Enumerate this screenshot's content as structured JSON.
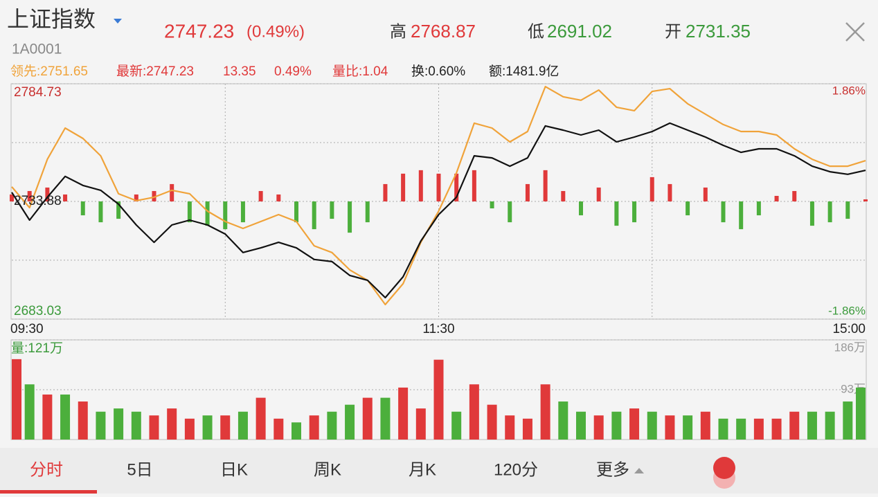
{
  "header": {
    "name": "上证指数",
    "code": "1A0001",
    "price": "2747.23",
    "change": "(0.49%)",
    "high_label": "高",
    "high": "2768.87",
    "low_label": "低",
    "low": "2691.02",
    "open_label": "开",
    "open": "2731.35"
  },
  "info": [
    "领先:2751.65",
    "最新:2747.23",
    "13.35",
    "0.49%",
    "量比:1.04",
    "换:0.60%",
    "额:1481.9亿"
  ],
  "tabs": [
    "分时",
    "5日",
    "日K",
    "周K",
    "月K",
    "120分",
    "更多"
  ],
  "chart_data": [
    {
      "type": "line",
      "x": [
        0,
        5,
        10,
        15,
        20,
        25,
        30,
        35,
        40,
        45,
        50,
        55,
        60,
        65,
        70,
        75,
        80,
        85,
        90,
        95,
        100,
        105,
        110,
        115,
        120,
        125,
        130,
        135,
        140,
        145,
        150,
        155,
        160,
        165,
        170,
        175,
        180,
        185,
        190,
        195,
        200,
        205,
        210,
        215,
        220,
        225,
        230,
        235,
        240
      ],
      "xlim": [
        0,
        240
      ],
      "xticks": [
        {
          "value": 0,
          "label": "09:30"
        },
        {
          "value": 120,
          "label": "11:30"
        },
        {
          "value": 240,
          "label": "15:00"
        }
      ],
      "xgrid": [
        60,
        120,
        180
      ],
      "ylim": [
        2683.03,
        2784.73
      ],
      "yticks": [
        2784.73,
        2733.88,
        2683.03
      ],
      "ygrid": [
        2759.3,
        2708.5
      ],
      "y2lim": [
        -1.86,
        1.86
      ],
      "y2ticks": [
        {
          "value": 1.86,
          "label": "1.86%"
        },
        {
          "value": -1.86,
          "label": "-1.86%"
        }
      ],
      "series": [
        {
          "color": "#f0a33a",
          "values": [
            2740.2,
            2731.2,
            2752.1,
            2765.6,
            2761.1,
            2753.6,
            2737.2,
            2734.2,
            2735.7,
            2738.7,
            2737.2,
            2729.7,
            2725.2,
            2722.2,
            2725.2,
            2728.2,
            2725.2,
            2714.7,
            2711.8,
            2704.3,
            2699.8,
            2689.3,
            2698.3,
            2716.2,
            2729.7,
            2746.2,
            2767.7,
            2765.6,
            2759.6,
            2764.1,
            2783.5,
            2779.1,
            2777.6,
            2782.0,
            2774.6,
            2773.1,
            2781.4,
            2782.6,
            2776.1,
            2771.6,
            2767.1,
            2764.1,
            2764.1,
            2762.6,
            2756.6,
            2752.1,
            2749.1,
            2749.1,
            2751.5
          ]
        },
        {
          "color": "#111111",
          "values": [
            2737.8,
            2725.8,
            2735.7,
            2744.7,
            2740.8,
            2738.7,
            2732.7,
            2723.7,
            2716.2,
            2723.7,
            2725.8,
            2723.7,
            2719.8,
            2711.8,
            2713.8,
            2716.2,
            2713.8,
            2708.8,
            2707.9,
            2701.9,
            2699.8,
            2692.3,
            2701.3,
            2716.8,
            2728.2,
            2735.7,
            2753.6,
            2752.7,
            2749.1,
            2752.7,
            2766.5,
            2764.7,
            2762.6,
            2764.7,
            2759.6,
            2761.7,
            2764.1,
            2767.7,
            2764.7,
            2761.7,
            2758.1,
            2755.1,
            2756.6,
            2756.6,
            2753.6,
            2749.1,
            2746.7,
            2745.6,
            2747.3
          ]
        }
      ],
      "bars": [
        3.0,
        4.5,
        6.0,
        3.0,
        -6.0,
        -9.0,
        -7.5,
        3.0,
        4.5,
        7.5,
        -9.0,
        -10.5,
        -12.0,
        -9.0,
        4.5,
        3.0,
        -9.0,
        -12.0,
        -7.5,
        -13.5,
        -9.0,
        7.5,
        12.0,
        13.5,
        12.0,
        12.0,
        13.5,
        -3.0,
        -9.0,
        7.5,
        13.5,
        4.5,
        -6.0,
        6.0,
        -10.5,
        -9.0,
        10.5,
        7.5,
        -6.0,
        6.0,
        -9.0,
        -12.0,
        -6.0,
        2.4,
        4.5,
        -10.5,
        -9.0,
        -7.5,
        0.9
      ],
      "up_color": "#e0393a",
      "down_color": "#4caf3c"
    },
    {
      "type": "bar",
      "label": "量:121万",
      "x": [
        0,
        5,
        10,
        15,
        20,
        25,
        30,
        35,
        40,
        45,
        50,
        55,
        60,
        65,
        70,
        75,
        80,
        85,
        90,
        95,
        100,
        105,
        110,
        115,
        120,
        125,
        130,
        135,
        140,
        145,
        150,
        155,
        160,
        165,
        170,
        175,
        180,
        185,
        190,
        195,
        200,
        205,
        210,
        215,
        220,
        225,
        230,
        235,
        240
      ],
      "xlim": [
        0,
        240
      ],
      "ylim": [
        0,
        186
      ],
      "yticks": [
        {
          "value": 93,
          "label": "93万"
        },
        {
          "value": 186,
          "label": "186万"
        }
      ],
      "values": [
        150,
        103,
        84,
        84,
        71,
        52,
        58,
        52,
        45,
        58,
        39,
        45,
        45,
        52,
        78,
        39,
        32,
        45,
        52,
        65,
        78,
        78,
        97,
        58,
        149,
        52,
        103,
        65,
        45,
        39,
        103,
        71,
        52,
        45,
        52,
        58,
        52,
        45,
        45,
        52,
        39,
        39,
        39,
        39,
        52,
        52,
        52,
        71,
        97
      ],
      "colors": [
        "#e0393a",
        "#4caf3c",
        "#e0393a",
        "#4caf3c",
        "#e0393a",
        "#4caf3c",
        "#4caf3c",
        "#4caf3c",
        "#e0393a",
        "#e0393a",
        "#e0393a",
        "#4caf3c",
        "#e0393a",
        "#4caf3c",
        "#e0393a",
        "#e0393a",
        "#4caf3c",
        "#e0393a",
        "#4caf3c",
        "#4caf3c",
        "#e0393a",
        "#4caf3c",
        "#e0393a",
        "#e0393a",
        "#e0393a",
        "#4caf3c",
        "#e0393a",
        "#e0393a",
        "#e0393a",
        "#e0393a",
        "#e0393a",
        "#4caf3c",
        "#4caf3c",
        "#e0393a",
        "#4caf3c",
        "#e0393a",
        "#4caf3c",
        "#e0393a",
        "#4caf3c",
        "#e0393a",
        "#4caf3c",
        "#4caf3c",
        "#e0393a",
        "#e0393a",
        "#e0393a",
        "#4caf3c",
        "#4caf3c",
        "#4caf3c",
        "#4caf3c"
      ]
    }
  ]
}
